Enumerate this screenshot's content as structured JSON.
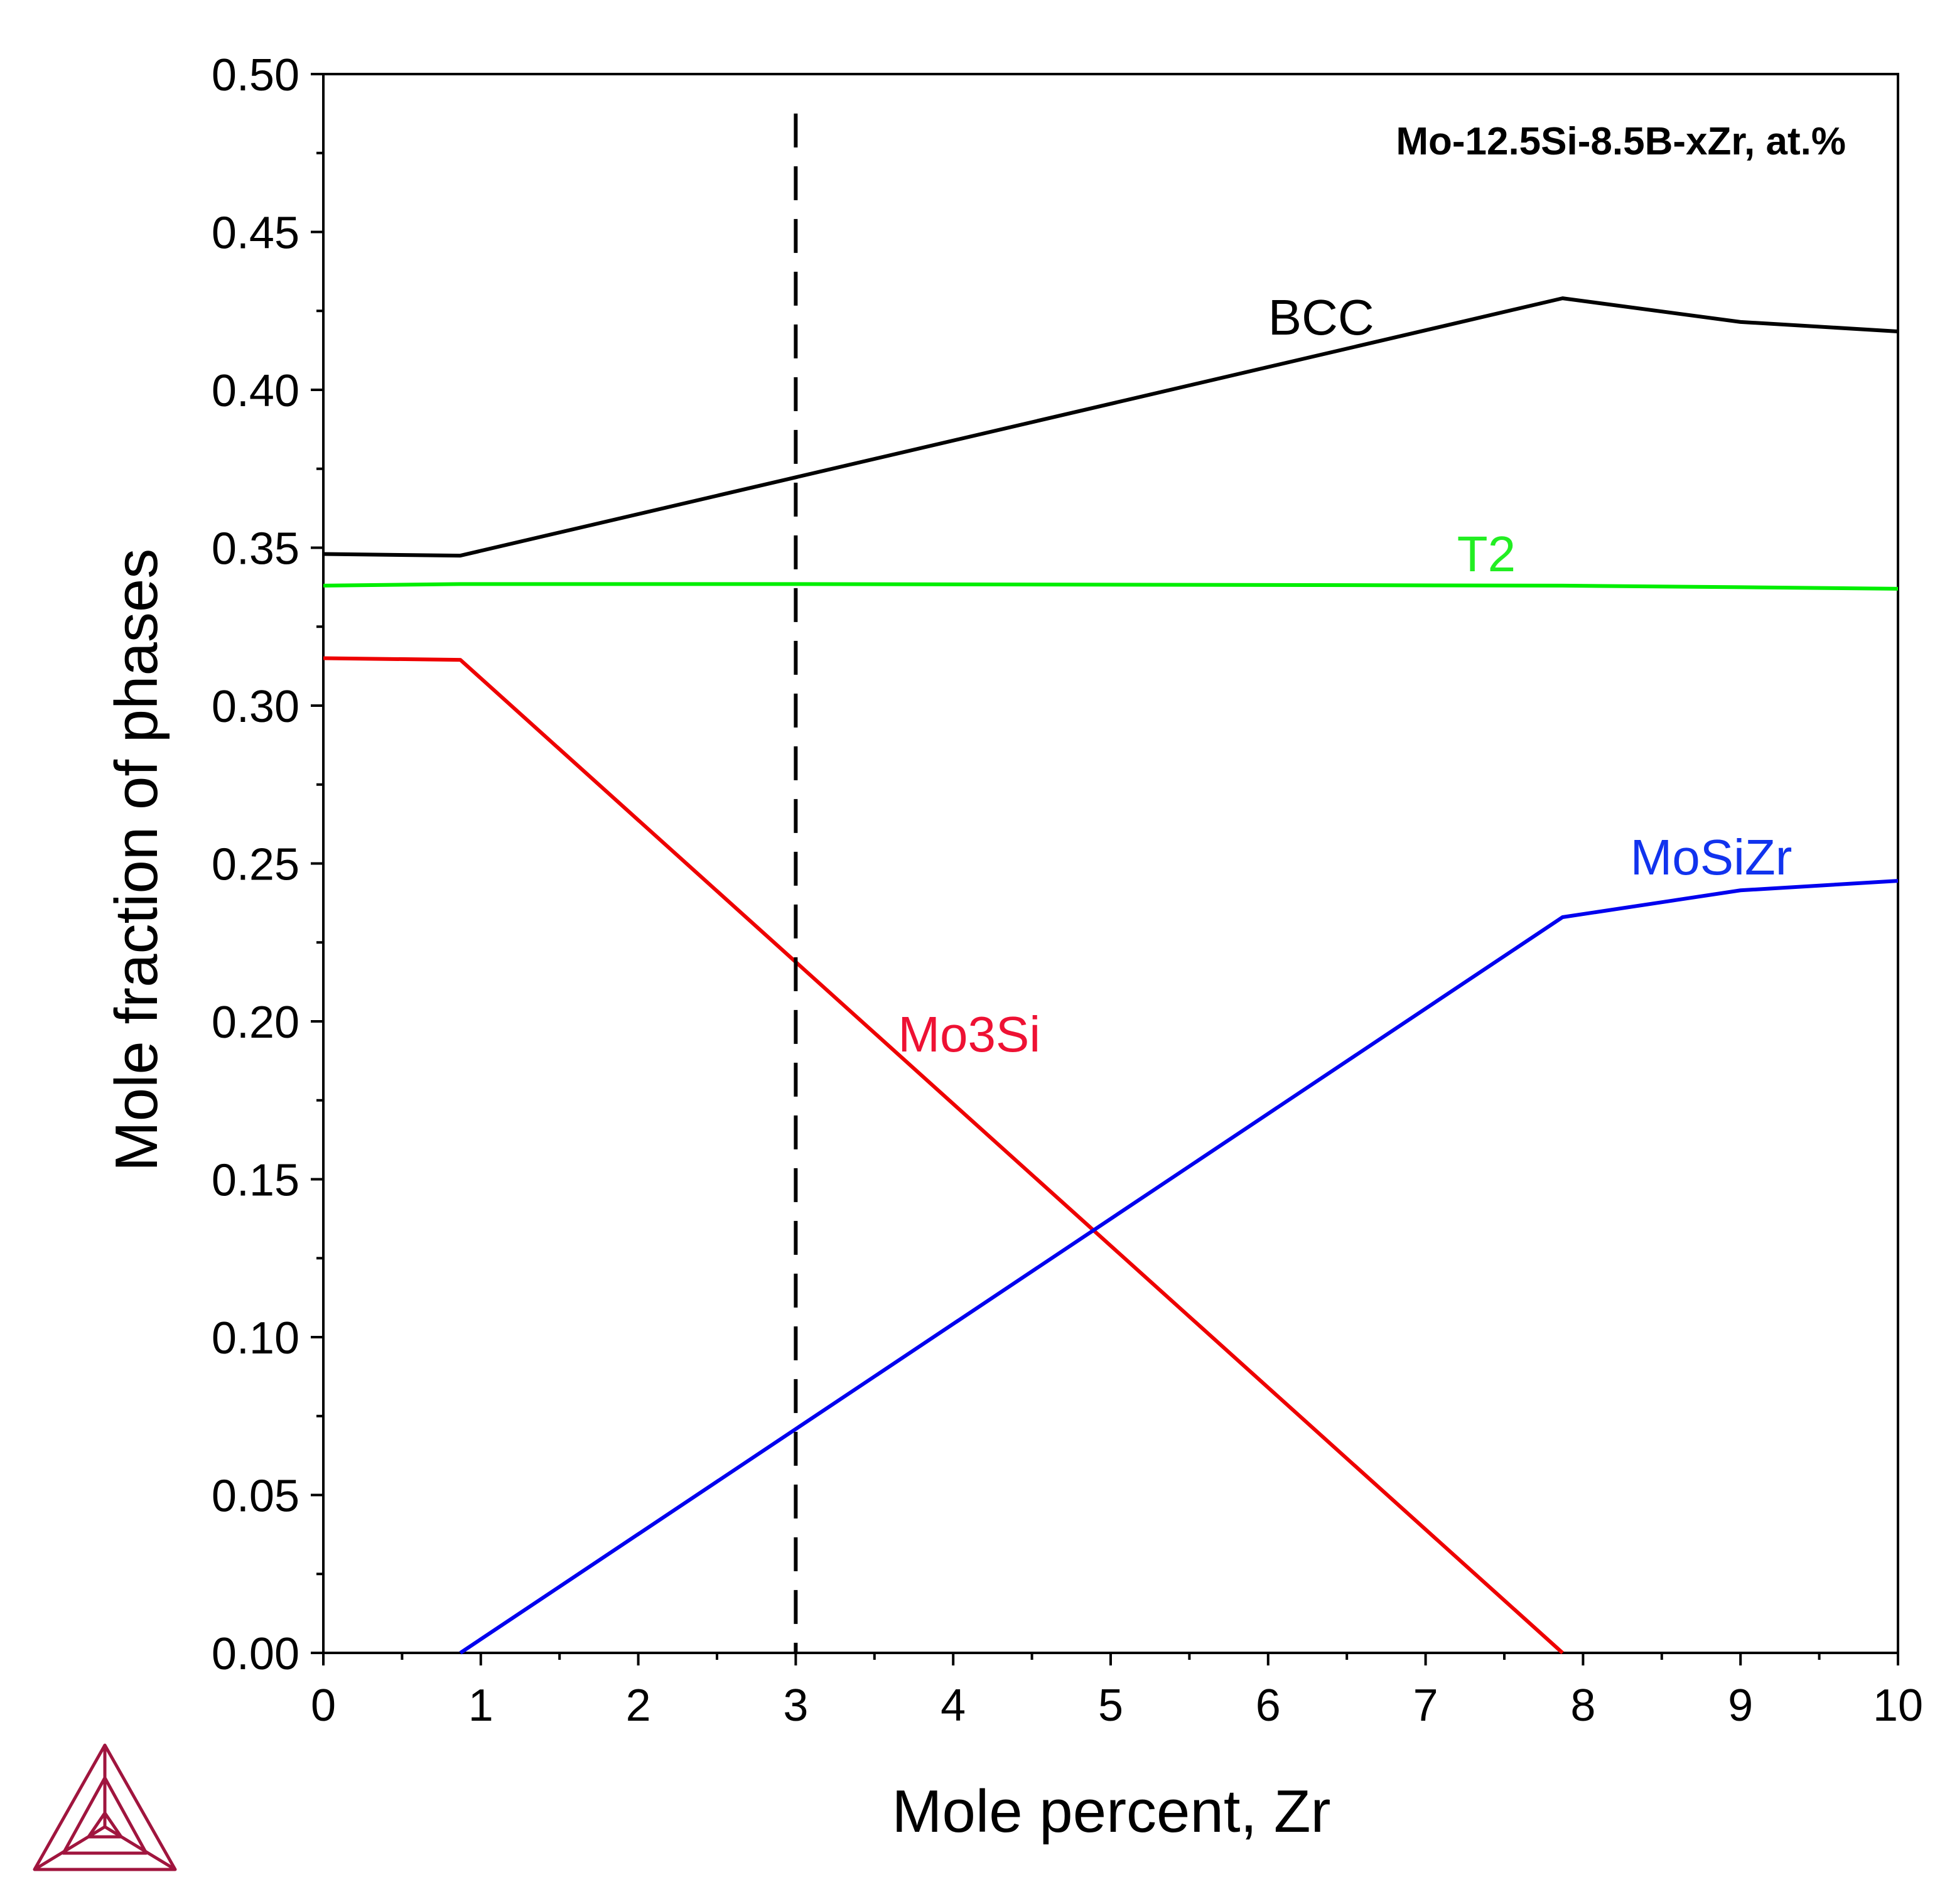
{
  "chart_data": {
    "type": "line",
    "annotation": "Mo-12.5Si-8.5B-xZr, at.%",
    "xlabel": "Mole percent, Zr",
    "ylabel": "Mole fraction of phases",
    "xlim": [
      0,
      10
    ],
    "ylim": [
      0,
      0.5
    ],
    "x_ticks": [
      "0",
      "1",
      "2",
      "3",
      "4",
      "5",
      "6",
      "7",
      "8",
      "9",
      "10"
    ],
    "y_ticks": [
      "0.00",
      "0.05",
      "0.10",
      "0.15",
      "0.20",
      "0.25",
      "0.30",
      "0.35",
      "0.40",
      "0.45",
      "0.50"
    ],
    "grid": false,
    "reference_line": {
      "x": 3,
      "style": "dashed",
      "color": "#000000"
    },
    "series": [
      {
        "name": "BCC",
        "color": "#000000",
        "x": [
          0,
          0.87,
          7.87,
          9,
          10
        ],
        "y": [
          0.348,
          0.3475,
          0.429,
          0.4215,
          0.4185
        ]
      },
      {
        "name": "T2",
        "color": "#00ee00",
        "x": [
          0,
          0.87,
          3,
          7.87,
          9,
          10
        ],
        "y": [
          0.338,
          0.3385,
          0.3385,
          0.338,
          0.3375,
          0.337
        ]
      },
      {
        "name": "Mo3Si",
        "color": "#ee0000",
        "x": [
          0,
          0.87,
          7.87
        ],
        "y": [
          0.315,
          0.3145,
          0
        ]
      },
      {
        "name": "MoSiZr",
        "color": "#0000ee",
        "x": [
          0.87,
          7.87,
          9,
          10
        ],
        "y": [
          0,
          0.233,
          0.2415,
          0.2445
        ]
      }
    ],
    "series_label_colors": {
      "BCC": "#000000",
      "T2": "#22ee22",
      "Mo3Si": "#ee1133",
      "MoSiZr": "#1133ee"
    }
  },
  "logo": {
    "name": "thermo-calc-logo-icon",
    "color": "#a0153e"
  }
}
